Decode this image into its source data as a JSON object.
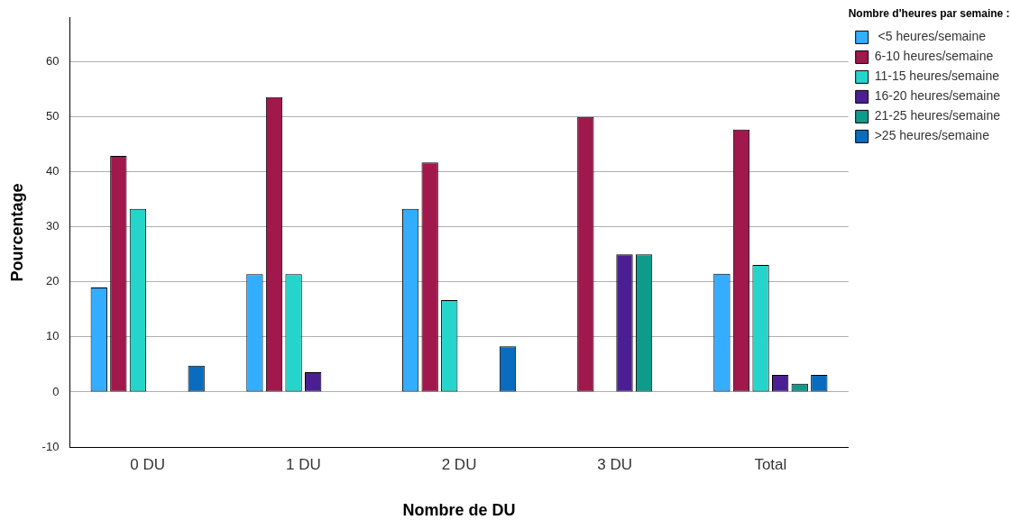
{
  "chart_data": {
    "type": "bar",
    "xlabel": "Nombre de DU",
    "ylabel": "Pourcentage",
    "legend_title": "Nombre d'heures par semaine :",
    "categories": [
      "0 DU",
      "1 DU",
      "2 DU",
      "3 DU",
      "Total"
    ],
    "series": [
      {
        "name": " <5 heures/semaine",
        "color": "#33adff",
        "values": [
          19.0,
          21.4,
          33.3,
          0,
          21.5
        ]
      },
      {
        "name": "6-10 heures/semaine",
        "color": "#a0184c",
        "values": [
          42.9,
          53.6,
          41.7,
          50,
          47.7
        ]
      },
      {
        "name": "11-15 heures/semaine",
        "color": "#25d5cc",
        "values": [
          33.3,
          21.4,
          16.7,
          0,
          23.1
        ]
      },
      {
        "name": "16-20 heures/semaine",
        "color": "#4b1f94",
        "values": [
          0,
          3.6,
          0,
          25,
          3.1
        ]
      },
      {
        "name": "21-25 heures/semaine",
        "color": "#0e9b8c",
        "values": [
          0,
          0,
          0,
          25,
          1.5
        ]
      },
      {
        "name": ">25 heures/semaine",
        "color": "#0a6cbf",
        "values": [
          4.8,
          0,
          8.3,
          0,
          3.1
        ]
      }
    ],
    "ylim": [
      -10,
      68
    ],
    "yticks": [
      -10,
      0,
      10,
      20,
      30,
      40,
      50,
      60
    ],
    "grid": "y",
    "legend": "top right"
  }
}
